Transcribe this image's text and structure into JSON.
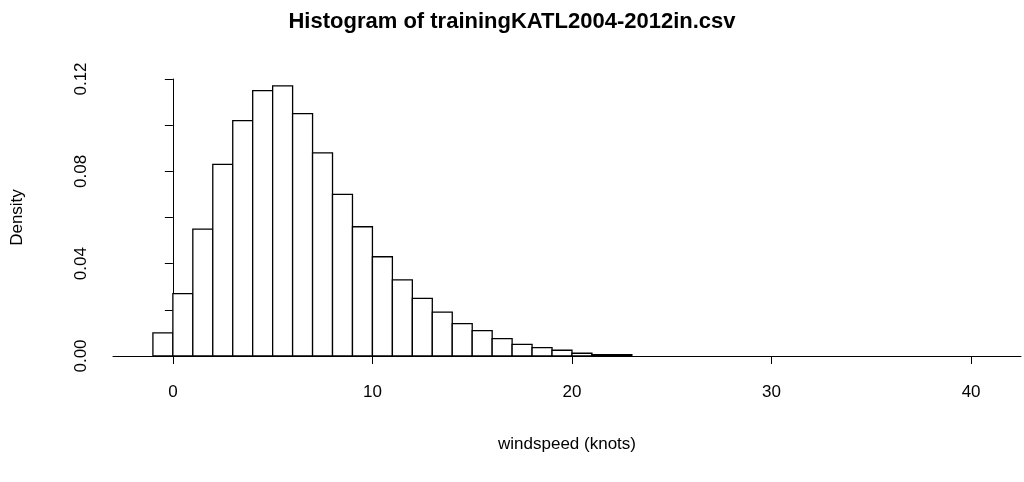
{
  "chart_data": {
    "type": "histogram",
    "title": "Histogram of trainingKATL2004-2012in.csv",
    "xlabel": "windspeed (knots)",
    "ylabel": "Density",
    "bins": [
      -1,
      0,
      1,
      2,
      3,
      4,
      5,
      6,
      7,
      8,
      9,
      10,
      11,
      12,
      13,
      14,
      15,
      16,
      17,
      18,
      19,
      20,
      21,
      22,
      23
    ],
    "values": [
      0.01,
      0.027,
      0.055,
      0.083,
      0.102,
      0.115,
      0.117,
      0.105,
      0.088,
      0.07,
      0.056,
      0.043,
      0.033,
      0.025,
      0.019,
      0.014,
      0.011,
      0.0075,
      0.005,
      0.0036,
      0.0025,
      0.0012,
      0.0006,
      0.0006
    ],
    "color": "#ffffff",
    "xlim": [
      -3,
      42.5
    ],
    "xticks": [
      0,
      10,
      20,
      30,
      40
    ],
    "ylim": [
      0,
      0.12
    ],
    "yticks": [
      {
        "value": 0,
        "label": "0.00"
      },
      {
        "value": 0.02,
        "label": null
      },
      {
        "value": 0.04,
        "label": "0.04"
      },
      {
        "value": 0.06,
        "label": null
      },
      {
        "value": 0.08,
        "label": "0.08"
      },
      {
        "value": 0.1,
        "label": null
      },
      {
        "value": 0.12,
        "label": "0.12"
      }
    ]
  }
}
